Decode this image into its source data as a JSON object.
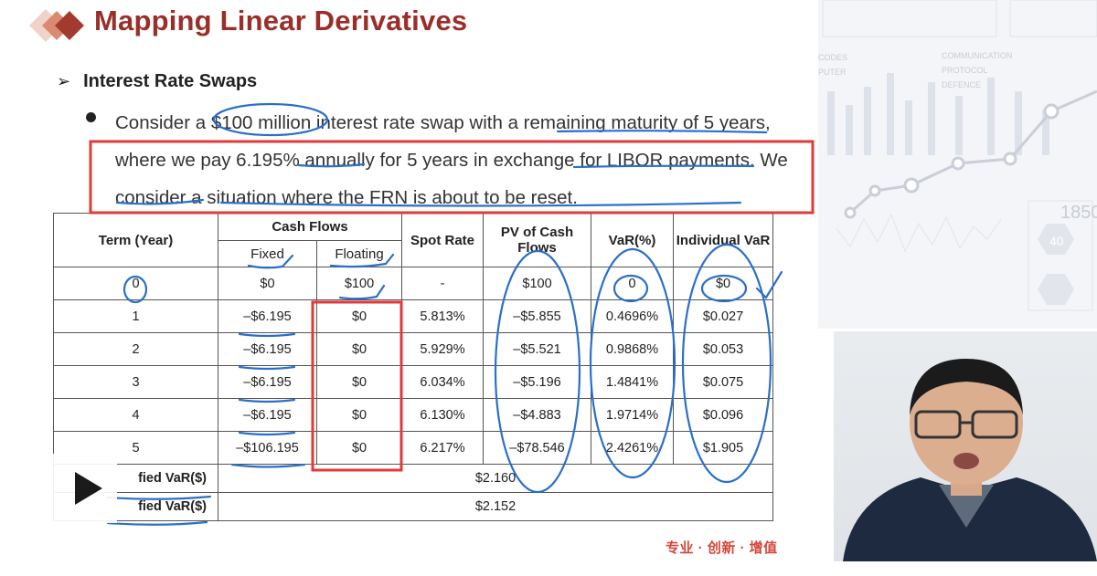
{
  "slide": {
    "title": "Mapping Linear Derivatives",
    "section": "Interest Rate Swaps",
    "bullet": "Consider a $100 million interest rate swap with a remaining maturity of 5 years, where we pay 6.195% annually for 5 years in exchange for LIBOR payments. We consider a situation where the FRN is about to be reset."
  },
  "table": {
    "headers": {
      "term": "Term (Year)",
      "cash_flows": "Cash Flows",
      "fixed": "Fixed",
      "floating": "Floating",
      "spot_rate": "Spot Rate",
      "pv": "PV of Cash Flows",
      "var_pct": "VaR(%)",
      "individual_var": "Individual VaR"
    },
    "rows": [
      {
        "term": "0",
        "fixed": "$0",
        "floating": "$100",
        "spot": "-",
        "pv": "$100",
        "var_pct": "0",
        "ind_var": "$0"
      },
      {
        "term": "1",
        "fixed": "–$6.195",
        "floating": "$0",
        "spot": "5.813%",
        "pv": "–$5.855",
        "var_pct": "0.4696%",
        "ind_var": "$0.027"
      },
      {
        "term": "2",
        "fixed": "–$6.195",
        "floating": "$0",
        "spot": "5.929%",
        "pv": "–$5.521",
        "var_pct": "0.9868%",
        "ind_var": "$0.053"
      },
      {
        "term": "3",
        "fixed": "–$6.195",
        "floating": "$0",
        "spot": "6.034%",
        "pv": "–$5.196",
        "var_pct": "1.4841%",
        "ind_var": "$0.075"
      },
      {
        "term": "4",
        "fixed": "–$6.195",
        "floating": "$0",
        "spot": "6.130%",
        "pv": "–$4.883",
        "var_pct": "1.9714%",
        "ind_var": "$0.096"
      },
      {
        "term": "5",
        "fixed": "–$106.195",
        "floating": "$0",
        "spot": "6.217%",
        "pv": "–$78.546",
        "var_pct": "2.4261%",
        "ind_var": "$1.905"
      }
    ],
    "summary": [
      {
        "label": "fied VaR($)",
        "value": "$2.160"
      },
      {
        "label": "fied VaR($)",
        "value": "$2.152"
      }
    ]
  },
  "footer": "专业 · 创新 · 增值",
  "background_labels": [
    "CODES",
    "PUTER",
    "COMMUNICATION",
    "PROTOCOL",
    "DEFENCE",
    "1850",
    "40"
  ],
  "player": {
    "icon": "play-icon"
  },
  "colors": {
    "title": "#9a2f2a",
    "annotation": "#2a6fc9",
    "highlight": "#e03a3a",
    "footer": "#d2463a"
  }
}
